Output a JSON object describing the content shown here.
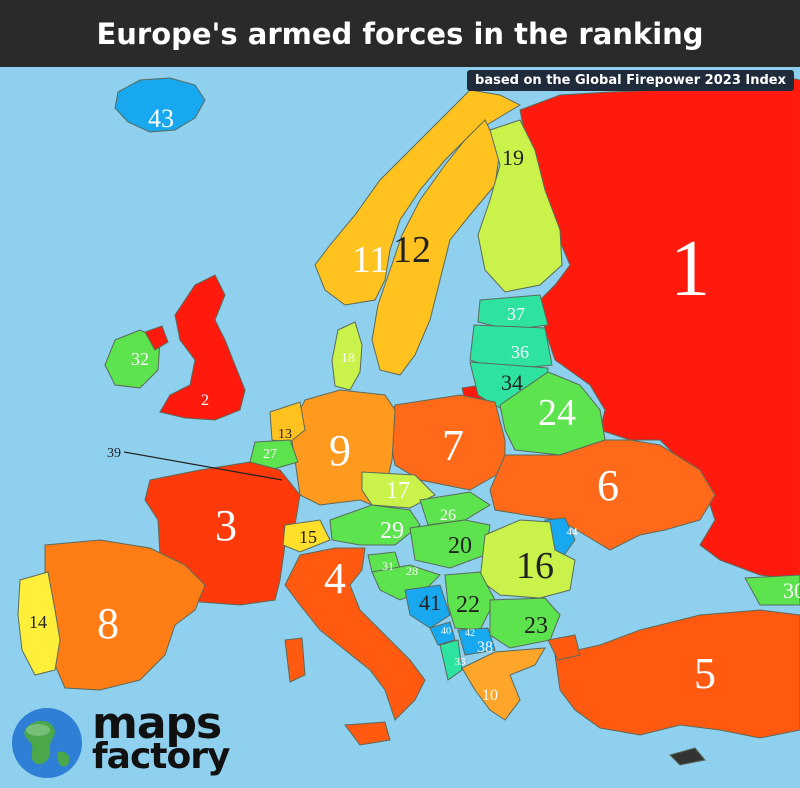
{
  "title": "Europe's armed forces in the ranking",
  "subtitle": "based on the Global Firepower 2023 Index",
  "logo": {
    "line1": "maps",
    "line2": "factory"
  },
  "colors": {
    "sea": "#8fd0ef",
    "rank_top": "#ff1a0d",
    "rank_high": "#ff6a1a",
    "rank_mid_high": "#ff9a1f",
    "rank_mid": "#ffc21f",
    "rank_low_mid": "#c9f24a",
    "rank_low": "#5de34e",
    "rank_lower": "#2ee3a0",
    "rank_lowest": "#17a8f0",
    "border": "#5a6a5a"
  },
  "rankings": [
    {
      "label": "1"
    },
    {
      "label": "2"
    },
    {
      "label": "3"
    },
    {
      "label": "4"
    },
    {
      "label": "5"
    },
    {
      "label": "6"
    },
    {
      "label": "7"
    },
    {
      "label": "8"
    },
    {
      "label": "9"
    },
    {
      "label": "10"
    },
    {
      "label": "11"
    },
    {
      "label": "12"
    },
    {
      "label": "13"
    },
    {
      "label": "14"
    },
    {
      "label": "15"
    },
    {
      "label": "16"
    },
    {
      "label": "17"
    },
    {
      "label": "18"
    },
    {
      "label": "19"
    },
    {
      "label": "20"
    },
    {
      "label": "22"
    },
    {
      "label": "23"
    },
    {
      "label": "24"
    },
    {
      "label": "26"
    },
    {
      "label": "27"
    },
    {
      "label": "28"
    },
    {
      "label": "29"
    },
    {
      "label": "30"
    },
    {
      "label": "31"
    },
    {
      "label": "32"
    },
    {
      "label": "33"
    },
    {
      "label": "34"
    },
    {
      "label": "36"
    },
    {
      "label": "37"
    },
    {
      "label": "38"
    },
    {
      "label": "39"
    },
    {
      "label": "40"
    },
    {
      "label": "41"
    },
    {
      "label": "42"
    },
    {
      "label": "43"
    },
    {
      "label": "44"
    }
  ]
}
